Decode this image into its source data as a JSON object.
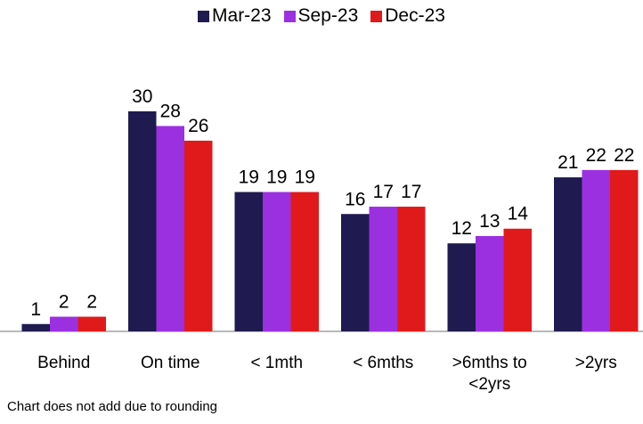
{
  "chart_data": {
    "type": "bar",
    "categories": [
      "Behind",
      "On time",
      "< 1mth",
      "< 6mths",
      ">6mths to <2yrs",
      ">2yrs"
    ],
    "series": [
      {
        "name": "Mar-23",
        "color": "#1f1a4f",
        "values": [
          1,
          30,
          19,
          16,
          12,
          21
        ]
      },
      {
        "name": "Sep-23",
        "color": "#9b30e0",
        "values": [
          2,
          28,
          19,
          17,
          13,
          22
        ]
      },
      {
        "name": "Dec-23",
        "color": "#e01a1a",
        "values": [
          2,
          26,
          19,
          17,
          14,
          22
        ]
      }
    ],
    "footnote": "Chart does not add due to rounding",
    "legend": "top"
  }
}
